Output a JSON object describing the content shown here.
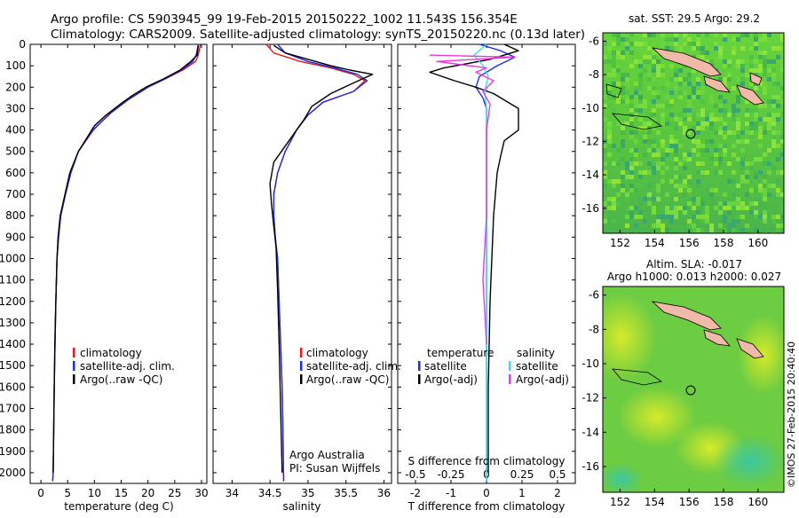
{
  "header": {
    "line1": "Argo profile: CS 5903945_99 19-Feb-2015 20150222_1002 11.543S 156.354E",
    "line2": "Climatology: CARS2009. Satellite-adjusted climatology: synTS_20150220.nc (0.13d later)"
  },
  "colors": {
    "climatology": "#e8161b",
    "satellite": "#1a2ce6",
    "argo": "#000000",
    "sat_salinity": "#36e2ea",
    "argo_salinity": "#e83ae0"
  },
  "chart_data": [
    {
      "type": "line",
      "xlabel": "temperature (deg C)",
      "ylabel": "",
      "xlim": [
        -2,
        31
      ],
      "ylim": [
        2050,
        0
      ],
      "xticks": [
        "0",
        "5",
        "10",
        "15",
        "20",
        "25",
        "30"
      ],
      "yticks": [
        "0",
        "100",
        "200",
        "300",
        "400",
        "500",
        "600",
        "700",
        "800",
        "900",
        "1000",
        "1100",
        "1200",
        "1300",
        "1400",
        "1500",
        "1600",
        "1700",
        "1800",
        "1900",
        "2000"
      ],
      "legend": [
        "climatology",
        "satellite-adj. clim.",
        "Argo(..raw -QC)"
      ],
      "series": [
        {
          "name": "climatology",
          "color": "#e8161b",
          "x": [
            29.8,
            29.4,
            28.9,
            26.5,
            23.3,
            20.0,
            16.2,
            13.1,
            11.4,
            9.8,
            7.0,
            5.6,
            4.6,
            3.7,
            3.3,
            3.0,
            2.8,
            2.65,
            2.5,
            2.4,
            2.3,
            2.2
          ],
          "y": [
            0,
            50,
            80,
            120,
            160,
            200,
            260,
            320,
            360,
            400,
            500,
            600,
            700,
            800,
            900,
            1000,
            1200,
            1400,
            1600,
            1800,
            2000,
            2040
          ]
        },
        {
          "name": "satellite-adj. clim.",
          "color": "#1a2ce6",
          "x": [
            29.4,
            29.0,
            28.4,
            26.2,
            23.3,
            20.0,
            16.2,
            13.0,
            11.4,
            9.7,
            7.0,
            5.6,
            4.6,
            3.7,
            3.3,
            3.0,
            2.8,
            2.65,
            2.5,
            2.4,
            2.3,
            2.2
          ],
          "y": [
            0,
            50,
            80,
            120,
            160,
            200,
            260,
            320,
            360,
            400,
            500,
            600,
            700,
            800,
            900,
            1000,
            1200,
            1400,
            1600,
            1800,
            2000,
            2040
          ]
        },
        {
          "name": "Argo(..raw -QC)",
          "color": "#000000",
          "x": [
            29.4,
            29.2,
            28.0,
            26.0,
            23.0,
            19.6,
            17.0,
            14.8,
            12.2,
            10.0,
            7.0,
            5.4,
            4.5,
            3.6,
            3.2,
            3.0,
            2.8,
            2.6,
            2.5,
            2.4,
            2.3
          ],
          "y": [
            5,
            50,
            80,
            120,
            160,
            200,
            240,
            280,
            330,
            380,
            500,
            600,
            700,
            800,
            900,
            1000,
            1200,
            1400,
            1600,
            1800,
            2000
          ]
        }
      ]
    },
    {
      "type": "line",
      "xlabel": "salinity",
      "ylabel": "",
      "xlim": [
        33.75,
        36.1
      ],
      "ylim": [
        2050,
        0
      ],
      "xticks": [
        "34",
        "34.5",
        "35",
        "35.5",
        "36"
      ],
      "legend": [
        "climatology",
        "satellite-adj. clim.",
        "Argo(..raw -QC)"
      ],
      "annotations": [
        "Argo Australia",
        "PI: Susan Wijffels"
      ],
      "series": [
        {
          "name": "climatology",
          "color": "#e8161b",
          "x": [
            34.45,
            34.55,
            34.9,
            35.3,
            35.6,
            35.75,
            35.6,
            35.2,
            35.0,
            34.85,
            34.7,
            34.6,
            34.55,
            34.55,
            34.57,
            34.6,
            34.62,
            34.64,
            34.66,
            34.67,
            34.68
          ],
          "y": [
            0,
            40,
            80,
            110,
            140,
            170,
            220,
            270,
            330,
            400,
            500,
            600,
            700,
            800,
            900,
            1000,
            1200,
            1400,
            1600,
            1800,
            2040
          ]
        },
        {
          "name": "satellite-adj. clim.",
          "color": "#1a2ce6",
          "x": [
            34.6,
            34.7,
            35.0,
            35.35,
            35.65,
            35.78,
            35.6,
            35.2,
            35.0,
            34.85,
            34.7,
            34.6,
            34.55,
            34.55,
            34.57,
            34.6,
            34.62,
            34.64,
            34.66,
            34.67,
            34.68
          ],
          "y": [
            0,
            40,
            80,
            110,
            140,
            170,
            220,
            270,
            330,
            400,
            500,
            600,
            700,
            800,
            900,
            1000,
            1200,
            1400,
            1600,
            1800,
            2040
          ]
        },
        {
          "name": "Argo(..raw -QC)",
          "color": "#000000",
          "x": [
            34.55,
            34.7,
            35.1,
            35.3,
            35.55,
            35.85,
            35.6,
            35.3,
            35.05,
            34.95,
            34.75,
            34.55,
            34.5,
            34.52,
            34.55,
            34.58,
            34.6,
            34.62,
            34.64,
            34.66
          ],
          "y": [
            5,
            40,
            80,
            100,
            120,
            140,
            180,
            230,
            290,
            350,
            450,
            550,
            650,
            750,
            850,
            950,
            1150,
            1400,
            1700,
            2000
          ]
        }
      ]
    },
    {
      "type": "line",
      "xlabel": "T difference from climatology",
      "xlabel_top": "S difference from climatology",
      "xlim": [
        -2.5,
        2.5
      ],
      "ylim": [
        2050,
        0
      ],
      "xticks": [
        "-2",
        "-1",
        "0",
        "1",
        "2"
      ],
      "xticks_s": [
        "-0.5",
        "-0.25",
        "0",
        "0.25",
        "0.5"
      ],
      "legend_titles": [
        "temperature",
        "salinity"
      ],
      "legend": [
        "satellite",
        "Argo(-adj)",
        "satellite",
        "Argo(-adj)"
      ],
      "series": [
        {
          "name": "temperature satellite",
          "color": "#1a2ce6",
          "x": [
            -0.2,
            0.4,
            0.8,
            0.3,
            -0.2,
            -0.3,
            -0.1,
            0.0,
            0.0,
            0.0,
            0.0,
            0.0,
            0.0
          ],
          "y": [
            0,
            30,
            60,
            100,
            150,
            200,
            250,
            300,
            400,
            600,
            1000,
            1500,
            2040
          ]
        },
        {
          "name": "temperature Argo(-adj)",
          "color": "#000000",
          "x": [
            0.5,
            0.9,
            0.1,
            -1.2,
            -1.6,
            -0.9,
            -0.3,
            0.2,
            0.9,
            0.9,
            0.5,
            0.4,
            0.3,
            0.2,
            0.15,
            0.1,
            0.05,
            0.05
          ],
          "y": [
            0,
            30,
            70,
            110,
            130,
            170,
            200,
            230,
            300,
            400,
            450,
            520,
            600,
            800,
            1000,
            1200,
            1600,
            2000
          ]
        },
        {
          "name": "salinity satellite",
          "color": "#36e2ea",
          "x": [
            0.0,
            -0.35,
            -0.1,
            0.05,
            -0.05,
            0.0,
            0.0,
            0.0
          ],
          "y": [
            0,
            50,
            100,
            150,
            220,
            300,
            1000,
            2040
          ]
        },
        {
          "name": "salinity Argo(-adj)",
          "color": "#e83ae0",
          "x": [
            -1.6,
            0.8,
            -1.4,
            0.0,
            -0.3,
            0.2,
            -0.1,
            0.1,
            0.0,
            0.0,
            -0.1,
            0.0
          ],
          "y": [
            50,
            60,
            80,
            110,
            130,
            170,
            220,
            280,
            400,
            800,
            1100,
            1400
          ]
        }
      ]
    }
  ],
  "maps": {
    "top": {
      "title": "sat. SST: 29.5  Argo: 29.2",
      "xticks": [
        "152",
        "154",
        "156",
        "158",
        "160"
      ],
      "yticks": [
        "-6",
        "-8",
        "-10",
        "-12",
        "-14",
        "-16"
      ]
    },
    "bottom": {
      "title1": "Altim. SLA: -0.017",
      "title2": "Argo h1000: 0.013 h2000: 0.027",
      "xticks": [
        "152",
        "154",
        "156",
        "158",
        "160"
      ],
      "yticks": [
        "-6",
        "-8",
        "-10",
        "-12",
        "-14",
        "-16"
      ]
    }
  },
  "footer": {
    "credit": "©IMOS 27-Feb-2015 20:40:40"
  }
}
